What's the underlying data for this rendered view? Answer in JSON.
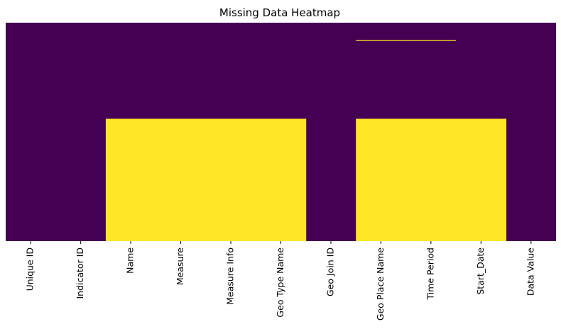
{
  "chart_data": {
    "type": "heatmap",
    "title": "Missing Data Heatmap",
    "xlabel": "",
    "ylabel": "",
    "columns": [
      "Unique ID",
      "Indicator ID",
      "Name",
      "Measure",
      "Measure Info",
      "Geo Type Name",
      "Geo Join ID",
      "Geo Place Name",
      "Time Period",
      "Start_Date",
      "Data Value"
    ],
    "value_range": [
      0,
      1
    ],
    "colormap": "viridis",
    "missing_color": "#fde725",
    "present_color": "#440154",
    "grid": false,
    "legend": "none",
    "missing_fraction_by_column": [
      0,
      0,
      0.5,
      0.5,
      0.5,
      0.5,
      0,
      0.5,
      0.5,
      0.5,
      0
    ],
    "missing_row_range_by_column": [
      null,
      null,
      [
        0.44,
        1.0
      ],
      [
        0.44,
        1.0
      ],
      [
        0.44,
        1.0
      ],
      [
        0.44,
        1.0
      ],
      null,
      [
        0.44,
        1.0
      ],
      [
        0.44,
        1.0
      ],
      [
        0.44,
        1.0
      ],
      null
    ],
    "extra_missing_rows": [
      {
        "column": "Geo Place Name",
        "row_fraction": 0.08
      },
      {
        "column": "Time Period",
        "row_fraction": 0.08
      }
    ]
  }
}
